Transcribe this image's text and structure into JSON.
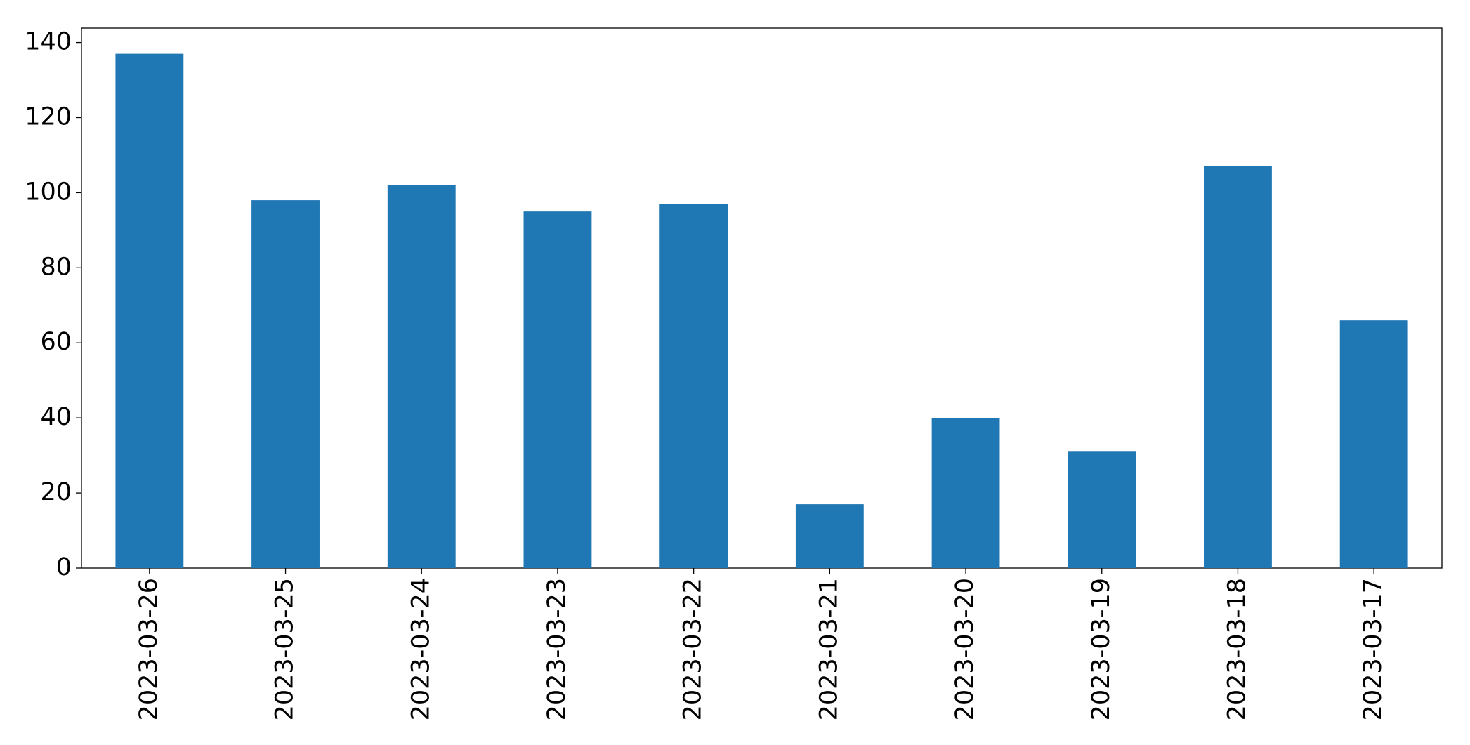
{
  "chart_data": {
    "type": "bar",
    "categories": [
      "2023-03-26",
      "2023-03-25",
      "2023-03-24",
      "2023-03-23",
      "2023-03-22",
      "2023-03-21",
      "2023-03-20",
      "2023-03-19",
      "2023-03-18",
      "2023-03-17"
    ],
    "values": [
      137,
      98,
      102,
      95,
      97,
      17,
      40,
      31,
      107,
      66
    ],
    "color": "#1f77b4",
    "ylim": [
      0,
      143.85
    ],
    "yticks": [
      0,
      20,
      40,
      60,
      80,
      100,
      120,
      140
    ],
    "grid": false
  }
}
